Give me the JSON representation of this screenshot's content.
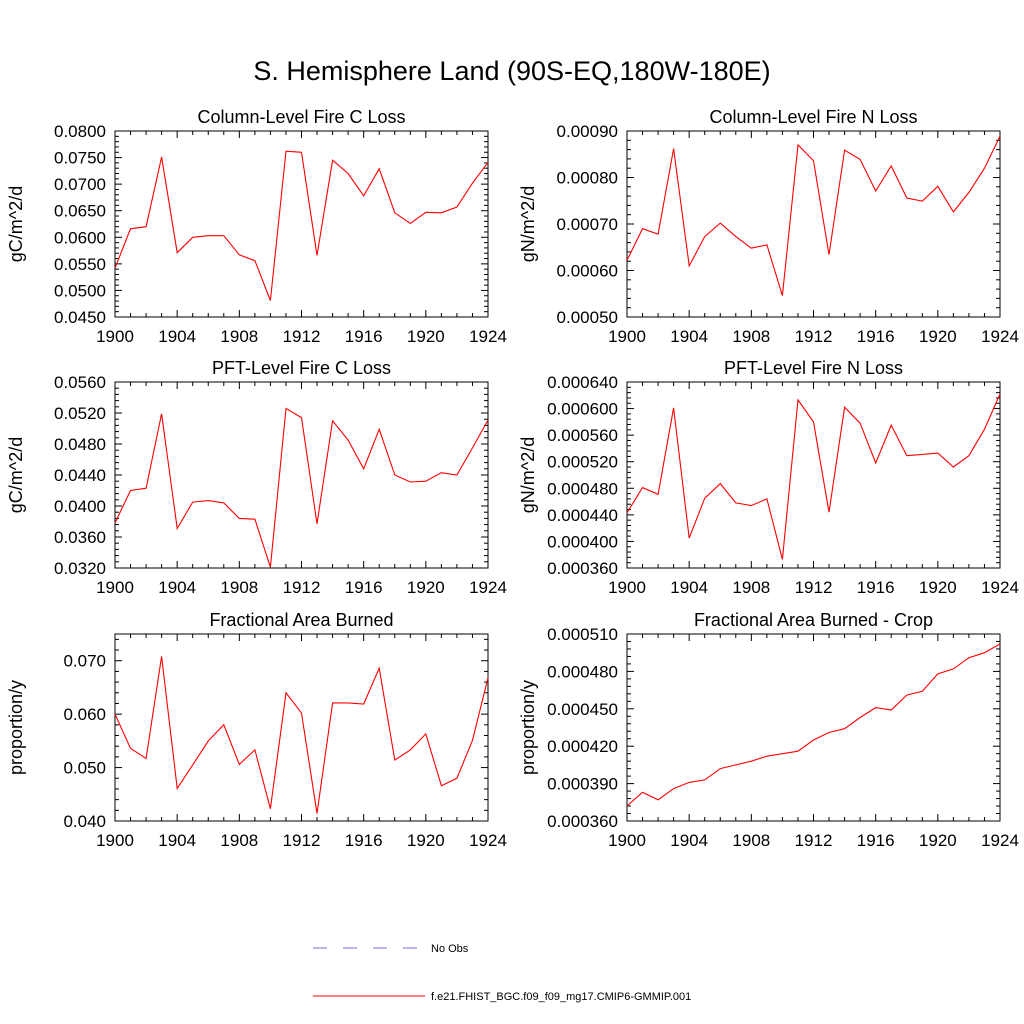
{
  "title": "S. Hemisphere Land (90S-EQ,180W-180E)",
  "colors": {
    "model_line": "#ff0000",
    "obs_line": "#6b6bd6",
    "axis": "#000000"
  },
  "legend": {
    "obs_label": "No Obs",
    "model_label": "f.e21.FHIST_BGC.f09_f09_mg17.CMIP6-GMMIP.001"
  },
  "chart_data": [
    {
      "type": "line",
      "title": "Column-Level Fire C Loss",
      "xlabel": "",
      "ylabel": "gC/m^2/d",
      "xlim": [
        1900,
        1924
      ],
      "ylim": [
        0.045,
        0.08
      ],
      "x_ticks": [
        "1900",
        "1904",
        "1908",
        "1912",
        "1916",
        "1920",
        "1924"
      ],
      "y_ticks": [
        "0.0450",
        "0.0500",
        "0.0550",
        "0.0600",
        "0.0650",
        "0.0700",
        "0.0750",
        "0.0800"
      ],
      "x": [
        1900,
        1901,
        1902,
        1903,
        1904,
        1905,
        1906,
        1907,
        1908,
        1909,
        1910,
        1911,
        1912,
        1913,
        1914,
        1915,
        1916,
        1917,
        1918,
        1919,
        1920,
        1921,
        1922,
        1923,
        1924
      ],
      "series": [
        {
          "values": [
            0.0542,
            0.0616,
            0.062,
            0.0751,
            0.0571,
            0.06,
            0.0603,
            0.0603,
            0.0567,
            0.0556,
            0.0481,
            0.0762,
            0.076,
            0.0566,
            0.0745,
            0.072,
            0.0678,
            0.0729,
            0.0646,
            0.0626,
            0.0647,
            0.0646,
            0.0657,
            0.0702,
            0.0741
          ]
        }
      ]
    },
    {
      "type": "line",
      "title": "Column-Level Fire N Loss",
      "xlabel": "",
      "ylabel": "gN/m^2/d",
      "xlim": [
        1900,
        1924
      ],
      "ylim": [
        0.0005,
        0.0009
      ],
      "x_ticks": [
        "1900",
        "1904",
        "1908",
        "1912",
        "1916",
        "1920",
        "1924"
      ],
      "y_ticks": [
        "0.00050",
        "0.00060",
        "0.00070",
        "0.00080",
        "0.00090"
      ],
      "x": [
        1900,
        1901,
        1902,
        1903,
        1904,
        1905,
        1906,
        1907,
        1908,
        1909,
        1910,
        1911,
        1912,
        1913,
        1914,
        1915,
        1916,
        1917,
        1918,
        1919,
        1920,
        1921,
        1922,
        1923,
        1924
      ],
      "series": [
        {
          "values": [
            0.000622,
            0.00069,
            0.000678,
            0.000862,
            0.00061,
            0.000673,
            0.000702,
            0.000673,
            0.000648,
            0.000655,
            0.000546,
            0.00087,
            0.000836,
            0.000634,
            0.000859,
            0.000839,
            0.000771,
            0.000825,
            0.000756,
            0.000749,
            0.000781,
            0.000726,
            0.000768,
            0.00082,
            0.000889
          ]
        }
      ]
    },
    {
      "type": "line",
      "title": "PFT-Level Fire C Loss",
      "xlabel": "",
      "ylabel": "gC/m^2/d",
      "xlim": [
        1900,
        1924
      ],
      "ylim": [
        0.032,
        0.056
      ],
      "x_ticks": [
        "1900",
        "1904",
        "1908",
        "1912",
        "1916",
        "1920",
        "1924"
      ],
      "y_ticks": [
        "0.0320",
        "0.0360",
        "0.0400",
        "0.0440",
        "0.0480",
        "0.0520",
        "0.0560"
      ],
      "x": [
        1900,
        1901,
        1902,
        1903,
        1904,
        1905,
        1906,
        1907,
        1908,
        1909,
        1910,
        1911,
        1912,
        1913,
        1914,
        1915,
        1916,
        1917,
        1918,
        1919,
        1920,
        1921,
        1922,
        1923,
        1924
      ],
      "series": [
        {
          "values": [
            0.0378,
            0.042,
            0.0423,
            0.0519,
            0.0371,
            0.0405,
            0.0407,
            0.0404,
            0.0384,
            0.0383,
            0.0321,
            0.0526,
            0.0514,
            0.0377,
            0.051,
            0.0485,
            0.0448,
            0.0499,
            0.044,
            0.0431,
            0.0432,
            0.0443,
            0.044,
            0.0475,
            0.0511
          ]
        }
      ]
    },
    {
      "type": "line",
      "title": "PFT-Level Fire N Loss",
      "xlabel": "",
      "ylabel": "gN/m^2/d",
      "xlim": [
        1900,
        1924
      ],
      "ylim": [
        0.00036,
        0.00064
      ],
      "x_ticks": [
        "1900",
        "1904",
        "1908",
        "1912",
        "1916",
        "1920",
        "1924"
      ],
      "y_ticks": [
        "0.000360",
        "0.000400",
        "0.000440",
        "0.000480",
        "0.000520",
        "0.000560",
        "0.000600",
        "0.000640"
      ],
      "x": [
        1900,
        1901,
        1902,
        1903,
        1904,
        1905,
        1906,
        1907,
        1908,
        1909,
        1910,
        1911,
        1912,
        1913,
        1914,
        1915,
        1916,
        1917,
        1918,
        1919,
        1920,
        1921,
        1922,
        1923,
        1924
      ],
      "series": [
        {
          "values": [
            0.000443,
            0.000481,
            0.000471,
            0.000601,
            0.000405,
            0.000465,
            0.000487,
            0.000458,
            0.000454,
            0.000464,
            0.000373,
            0.000613,
            0.00058,
            0.000444,
            0.000602,
            0.000578,
            0.000518,
            0.000575,
            0.000529,
            0.000531,
            0.000533,
            0.000512,
            0.000529,
            0.000569,
            0.000622
          ]
        }
      ]
    },
    {
      "type": "line",
      "title": "Fractional Area Burned",
      "xlabel": "",
      "ylabel": "proportion/y",
      "xlim": [
        1900,
        1924
      ],
      "ylim": [
        0.04,
        0.075
      ],
      "x_ticks": [
        "1900",
        "1904",
        "1908",
        "1912",
        "1916",
        "1920",
        "1924"
      ],
      "y_ticks": [
        "0.040",
        "0.050",
        "0.060",
        "0.070"
      ],
      "x": [
        1900,
        1901,
        1902,
        1903,
        1904,
        1905,
        1906,
        1907,
        1908,
        1909,
        1910,
        1911,
        1912,
        1913,
        1914,
        1915,
        1916,
        1917,
        1918,
        1919,
        1920,
        1921,
        1922,
        1923,
        1924
      ],
      "series": [
        {
          "values": [
            0.06,
            0.0536,
            0.0517,
            0.0708,
            0.0461,
            0.0505,
            0.055,
            0.058,
            0.0506,
            0.0533,
            0.0423,
            0.064,
            0.0602,
            0.0414,
            0.0621,
            0.0621,
            0.0619,
            0.0686,
            0.0514,
            0.0533,
            0.0563,
            0.0466,
            0.048,
            0.0551,
            0.0668
          ]
        }
      ]
    },
    {
      "type": "line",
      "title": "Fractional Area Burned - Crop",
      "xlabel": "",
      "ylabel": "proportion/y",
      "xlim": [
        1900,
        1924
      ],
      "ylim": [
        0.00036,
        0.00051
      ],
      "x_ticks": [
        "1900",
        "1904",
        "1908",
        "1912",
        "1916",
        "1920",
        "1924"
      ],
      "y_ticks": [
        "0.000360",
        "0.000390",
        "0.000420",
        "0.000450",
        "0.000480",
        "0.000510"
      ],
      "x": [
        1900,
        1901,
        1902,
        1903,
        1904,
        1905,
        1906,
        1907,
        1908,
        1909,
        1910,
        1911,
        1912,
        1913,
        1914,
        1915,
        1916,
        1917,
        1918,
        1919,
        1920,
        1921,
        1922,
        1923,
        1924
      ],
      "series": [
        {
          "values": [
            0.000372,
            0.000383,
            0.000377,
            0.000386,
            0.000391,
            0.000393,
            0.000402,
            0.000405,
            0.000408,
            0.000412,
            0.000414,
            0.000416,
            0.000425,
            0.000431,
            0.000434,
            0.000443,
            0.000451,
            0.000449,
            0.000461,
            0.000464,
            0.000478,
            0.000482,
            0.000491,
            0.000495,
            0.000502
          ]
        }
      ]
    }
  ]
}
